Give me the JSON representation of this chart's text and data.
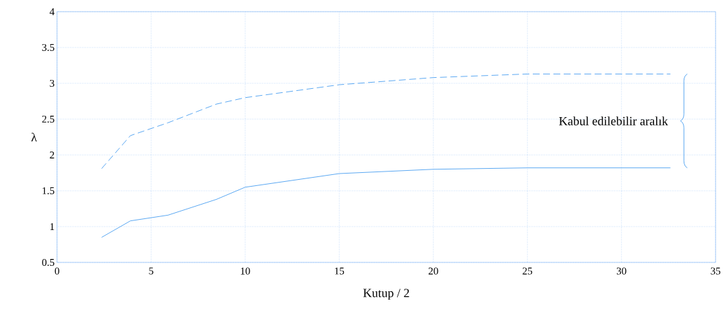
{
  "chart_data": {
    "type": "line",
    "xlabel": "Kutup / 2",
    "ylabel": "λ",
    "x": [
      2.37,
      3.9,
      5.9,
      8.47,
      10,
      15,
      20,
      25,
      32.6
    ],
    "series": [
      {
        "color": "#4a9ff0",
        "line_style": "dashed",
        "values": [
          1.81,
          2.27,
          2.45,
          2.71,
          2.8,
          2.98,
          3.08,
          3.13,
          3.13
        ]
      },
      {
        "color": "#4a9ff0",
        "line_style": "solid",
        "values": [
          0.85,
          1.08,
          1.16,
          1.38,
          1.55,
          1.74,
          1.8,
          1.82,
          1.82
        ]
      }
    ],
    "xlim": [
      0,
      35
    ],
    "ylim": [
      0.5,
      4
    ],
    "xticks": [
      0,
      5,
      10,
      15,
      20,
      25,
      30,
      35
    ],
    "yticks": [
      0.5,
      1,
      1.5,
      2,
      2.5,
      3,
      3.5,
      4
    ],
    "grid": true,
    "marker": "none",
    "annotations": [
      "Kabul edilebilir aralık"
    ]
  }
}
